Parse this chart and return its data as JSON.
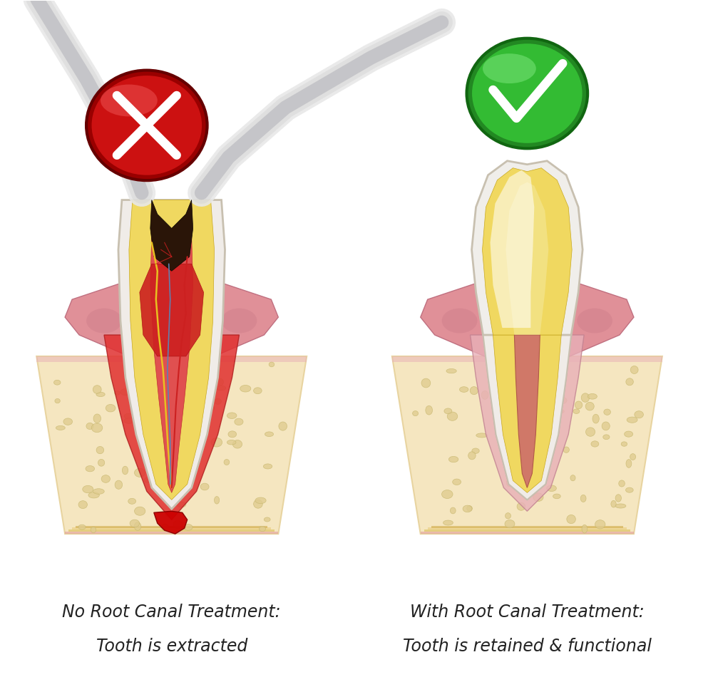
{
  "background_color": "#ffffff",
  "left_label_line1": "No Root Canal Treatment:",
  "left_label_line2": "Tooth is extracted",
  "right_label_line1": "With Root Canal Treatment:",
  "right_label_line2": "Tooth is retained & functional",
  "label_fontsize": 17,
  "label_color": "#222222",
  "bone_color": "#f5e6c0",
  "bone_border_color": "#e8d4a0",
  "bone_spot_color": "#e0cc90",
  "gum_color": "#e09098",
  "gum_dark_color": "#c07080",
  "tooth_enamel_color": "#f0ece8",
  "tooth_dentin_color": "#f0d860",
  "tooth_pulp_red": "#d84040",
  "root_fill_color": "#c86858",
  "nerve_yellow": "#e8c020",
  "nerve_red": "#cc2020",
  "nerve_blue": "#6080b0",
  "cavity_color": "#2a1508",
  "forceps_light": "#e8e8e8",
  "forceps_mid": "#d0d0d0",
  "forceps_dark": "#a0a0a8",
  "x_red": "#cc1111",
  "x_dark_red": "#881111",
  "check_green": "#33aa33",
  "check_dark_green": "#228822",
  "abscess_red": "#cc0000",
  "inflamed_red": "#e03030",
  "periligament_color": "#f0d8d0"
}
